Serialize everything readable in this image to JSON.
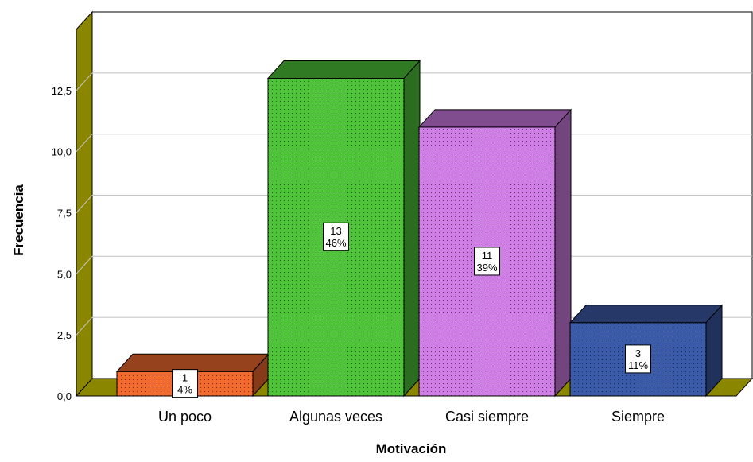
{
  "chart_data": {
    "type": "bar",
    "style": "3d",
    "title": "",
    "xlabel": "Motivación",
    "ylabel": "Frecuencia",
    "ylim": [
      0,
      15
    ],
    "yticks": [
      "0,0",
      "2,5",
      "5,0",
      "7,5",
      "10,0",
      "12,5"
    ],
    "categories": [
      "Un poco",
      "Algunas veces",
      "Casi siempre",
      "Siempre"
    ],
    "values": [
      1,
      13,
      11,
      3
    ],
    "percent_labels": [
      "4%",
      "46%",
      "39%",
      "11%"
    ],
    "colors": [
      "#f26a2e",
      "#4fc43a",
      "#cf7ee6",
      "#3b5aa8"
    ],
    "floor_color": "#8b8600",
    "grid": true,
    "legend": "none"
  }
}
